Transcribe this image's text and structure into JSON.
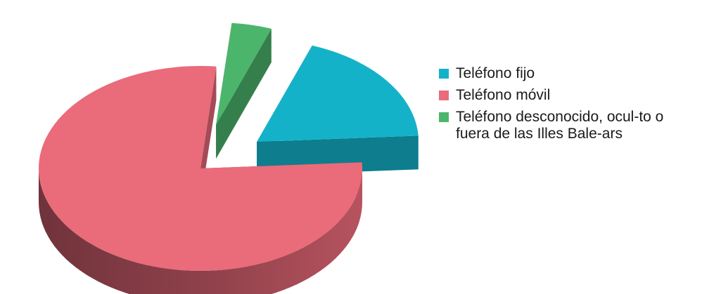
{
  "chart_data": {
    "type": "pie",
    "style": "3d-exploded",
    "categories": [
      "Teléfono fijo",
      "Teléfono móvil",
      "Teléfono desconocido, ocul-to o fuera de las Illes Bale-ars"
    ],
    "values": [
      18.5,
      77.5,
      4.0
    ],
    "colors": [
      "#14b2c9",
      "#ea6b7a",
      "#4cb56c"
    ],
    "title": "",
    "legend_position": "right"
  },
  "legend": {
    "items": [
      {
        "label": "Teléfono fijo",
        "color": "#14b2c9"
      },
      {
        "label": "Teléfono móvil",
        "color": "#ea6b7a"
      },
      {
        "label": "Teléfono desconocido, ocul-to o fuera de las Illes Bale-ars",
        "color": "#4cb56c"
      }
    ]
  }
}
